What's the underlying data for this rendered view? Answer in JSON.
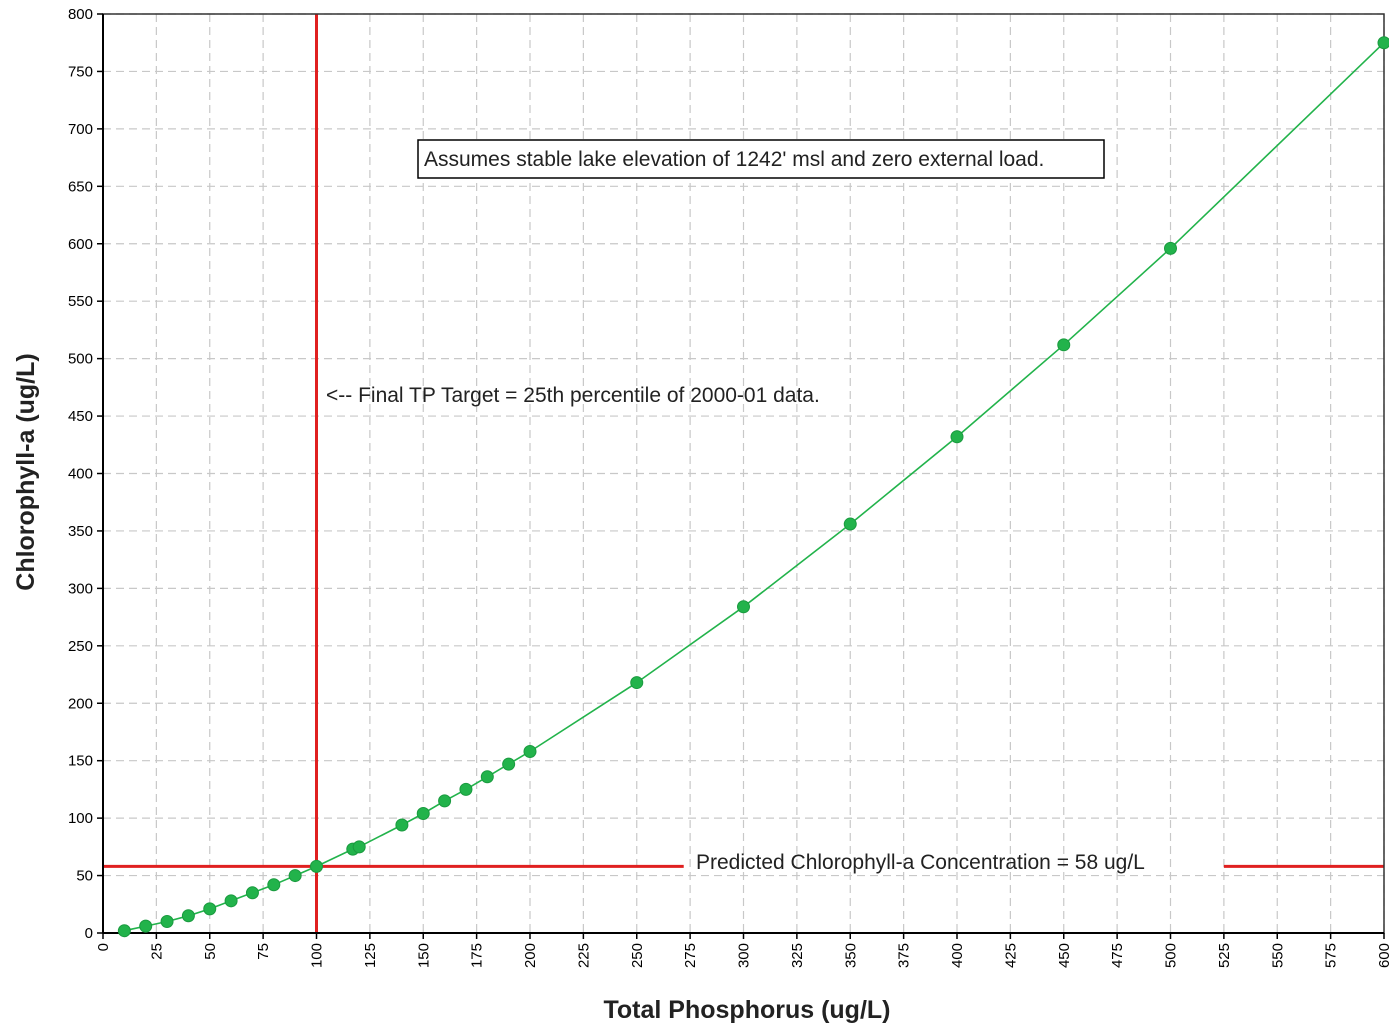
{
  "chart_data": {
    "type": "scatter",
    "xlabel": "Total Phosphorus (ug/L)",
    "ylabel": "Chlorophyll-a (ug/L)",
    "xlim": [
      0,
      600
    ],
    "ylim": [
      0,
      800
    ],
    "x_ticks": [
      0,
      25,
      50,
      75,
      100,
      125,
      150,
      175,
      200,
      225,
      250,
      275,
      300,
      325,
      350,
      375,
      400,
      425,
      450,
      475,
      500,
      525,
      550,
      575,
      600
    ],
    "y_ticks": [
      0,
      50,
      100,
      150,
      200,
      250,
      300,
      350,
      400,
      450,
      500,
      550,
      600,
      650,
      700,
      750,
      800
    ],
    "grid": true,
    "marker_color": "#22b34b",
    "line_color": "#22b34b",
    "reference_color": "#e02020",
    "series": [
      {
        "points": [
          {
            "x": 10,
            "y": 2
          },
          {
            "x": 20,
            "y": 6
          },
          {
            "x": 30,
            "y": 10
          },
          {
            "x": 40,
            "y": 15
          },
          {
            "x": 50,
            "y": 21
          },
          {
            "x": 60,
            "y": 28
          },
          {
            "x": 70,
            "y": 35
          },
          {
            "x": 80,
            "y": 42
          },
          {
            "x": 90,
            "y": 50
          },
          {
            "x": 100,
            "y": 58
          },
          {
            "x": 117,
            "y": 73
          },
          {
            "x": 120,
            "y": 75
          },
          {
            "x": 140,
            "y": 94
          },
          {
            "x": 150,
            "y": 104
          },
          {
            "x": 160,
            "y": 115
          },
          {
            "x": 170,
            "y": 125
          },
          {
            "x": 180,
            "y": 136
          },
          {
            "x": 190,
            "y": 147
          },
          {
            "x": 200,
            "y": 158
          },
          {
            "x": 250,
            "y": 218
          },
          {
            "x": 300,
            "y": 284
          },
          {
            "x": 350,
            "y": 356
          },
          {
            "x": 400,
            "y": 432
          },
          {
            "x": 450,
            "y": 512
          },
          {
            "x": 500,
            "y": 596
          },
          {
            "x": 600,
            "y": 775
          }
        ]
      }
    ],
    "reference_lines": {
      "vertical_x": 100,
      "horizontal_y": 58
    },
    "annotations": {
      "box_note": "Assumes stable lake elevation of 1242' msl and zero external load.",
      "vertical_note": "<-- Final TP Target = 25th percentile of 2000-01 data.",
      "horizontal_note": "Predicted Chlorophyll-a Concentration = 58 ug/L"
    }
  }
}
